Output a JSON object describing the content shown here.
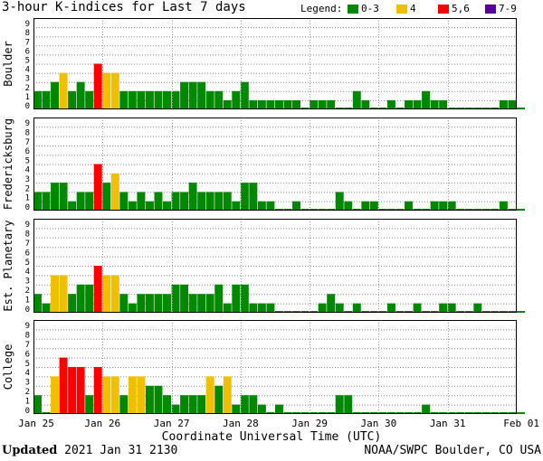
{
  "title": "3-hour K-indices for Last 7 days",
  "legend": {
    "label": "Legend:",
    "items": [
      {
        "text": "0-3",
        "color": "#008800"
      },
      {
        "text": "4",
        "color": "#f0c000"
      },
      {
        "text": "5,6",
        "color": "#ff0000"
      },
      {
        "text": "7-9",
        "color": "#5a009a"
      }
    ]
  },
  "footer": {
    "updated_label": "Updated",
    "updated_value": "2021 Jan 31 2130",
    "credit": "NOAA/SWPC Boulder, CO USA"
  },
  "chart_data": {
    "type": "bar",
    "title": "3-hour K-indices for Last 7 days",
    "xlabel": "Coordinate Universal Time (UTC)",
    "x_ticks": [
      "Jan 25",
      "Jan 26",
      "Jan 27",
      "Jan 28",
      "Jan 29",
      "Jan 30",
      "Jan 31",
      "Feb 01"
    ],
    "y_ticks": [
      "0",
      "1",
      "2",
      "3",
      "4",
      "5",
      "6",
      "7",
      "8",
      "9"
    ],
    "ylim": [
      0,
      9
    ],
    "grid": "horizontal dotted",
    "color_scale": {
      "0-3": "#008800",
      "4": "#f0c000",
      "5-6": "#ff0000",
      "7-9": "#5a009a"
    },
    "panels": [
      {
        "name": "Boulder",
        "values": [
          2,
          2,
          3,
          4,
          2,
          3,
          2,
          5,
          4,
          4,
          2,
          2,
          2,
          2,
          2,
          2,
          2,
          3,
          3,
          3,
          2,
          2,
          1,
          2,
          3,
          1,
          1,
          1,
          1,
          1,
          1,
          0,
          1,
          1,
          1,
          0,
          0,
          2,
          1,
          0,
          0,
          1,
          0,
          1,
          1,
          2,
          1,
          1,
          0,
          0,
          0,
          0,
          0,
          0,
          1,
          1,
          0
        ]
      },
      {
        "name": "Fredericksburg",
        "values": [
          2,
          2,
          3,
          3,
          1,
          2,
          2,
          5,
          3,
          4,
          2,
          1,
          2,
          1,
          2,
          1,
          2,
          2,
          3,
          2,
          2,
          2,
          2,
          1,
          3,
          3,
          1,
          1,
          0,
          0,
          1,
          0,
          0,
          0,
          0,
          2,
          1,
          0,
          1,
          1,
          0,
          0,
          0,
          1,
          0,
          0,
          1,
          1,
          1,
          0,
          0,
          0,
          0,
          0,
          1,
          0,
          0
        ]
      },
      {
        "name": "Est. Planetary",
        "values": [
          2,
          1,
          4,
          4,
          2,
          3,
          3,
          5,
          4,
          4,
          2,
          1,
          2,
          2,
          2,
          2,
          3,
          3,
          2,
          2,
          2,
          3,
          1,
          3,
          3,
          1,
          1,
          1,
          0,
          0,
          0,
          0,
          0,
          1,
          2,
          1,
          0,
          1,
          0,
          0,
          0,
          1,
          0,
          0,
          1,
          0,
          0,
          1,
          1,
          0,
          0,
          1,
          0,
          0,
          0,
          0,
          0
        ]
      },
      {
        "name": "College",
        "values": [
          2,
          0,
          4,
          6,
          5,
          5,
          2,
          5,
          4,
          4,
          2,
          4,
          4,
          3,
          3,
          2,
          1,
          2,
          2,
          2,
          4,
          3,
          4,
          1,
          2,
          2,
          1,
          0,
          1,
          0,
          0,
          0,
          0,
          0,
          0,
          2,
          2,
          0,
          0,
          0,
          0,
          0,
          0,
          0,
          0,
          1,
          0,
          0,
          0,
          0,
          0,
          0,
          0,
          0,
          0,
          0,
          0
        ]
      }
    ]
  }
}
